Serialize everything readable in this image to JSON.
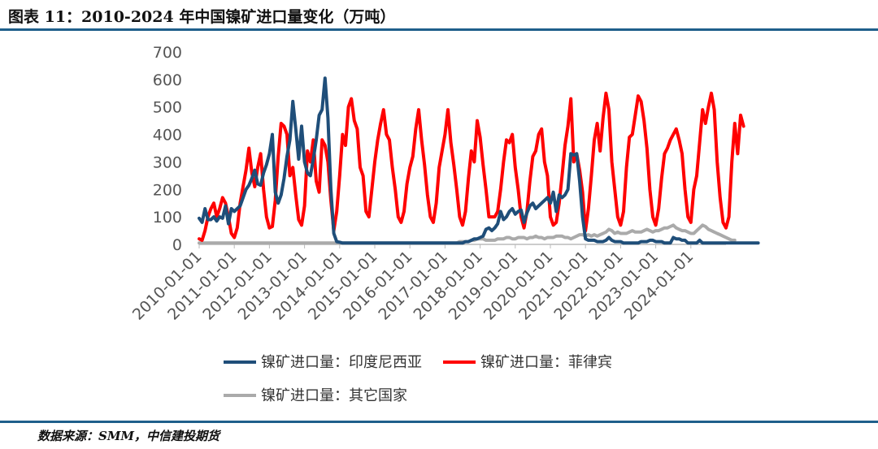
{
  "title": "图表 11：2010-2024 年中国镍矿进口量变化（万吨）",
  "source": "数据来源：SMM，中信建投期货",
  "chart_data": {
    "type": "line",
    "title": "2010-2024 年中国镍矿进口量变化（万吨）",
    "ylim": [
      0,
      700
    ],
    "yticks": [
      "0",
      "100",
      "200",
      "300",
      "400",
      "500",
      "600",
      "700"
    ],
    "xticks": [
      "2010-01-01",
      "2011-01-01",
      "2012-01-01",
      "2013-01-01",
      "2014-01-01",
      "2015-01-01",
      "2016-01-01",
      "2017-01-01",
      "2018-01-01",
      "2019-01-01",
      "2020-01-01",
      "2021-01-01",
      "2022-01-01",
      "2023-01-01",
      "2024-01-01"
    ],
    "x_start": "2010-01",
    "grid": false,
    "legend_position": "bottom",
    "series": [
      {
        "name": "镍矿进口量：印度尼西亚",
        "color": "#1f4e79",
        "values": [
          95,
          80,
          130,
          90,
          90,
          100,
          85,
          100,
          95,
          140,
          75,
          130,
          120,
          130,
          140,
          170,
          200,
          215,
          240,
          270,
          220,
          215,
          260,
          290,
          330,
          400,
          190,
          150,
          180,
          240,
          320,
          380,
          520,
          420,
          310,
          430,
          300,
          260,
          250,
          310,
          380,
          470,
          490,
          605,
          460,
          200,
          40,
          10,
          8,
          5,
          5,
          5,
          5,
          5,
          5,
          5,
          5,
          5,
          5,
          5,
          5,
          5,
          5,
          5,
          5,
          5,
          5,
          5,
          5,
          5,
          5,
          5,
          5,
          5,
          5,
          5,
          5,
          5,
          5,
          5,
          5,
          5,
          5,
          5,
          5,
          5,
          5,
          5,
          5,
          5,
          5,
          10,
          10,
          15,
          20,
          20,
          25,
          30,
          55,
          60,
          50,
          60,
          75,
          120,
          90,
          100,
          120,
          130,
          110,
          120,
          125,
          80,
          115,
          140,
          150,
          130,
          140,
          150,
          160,
          170,
          150,
          190,
          120,
          180,
          170,
          180,
          200,
          330,
          325,
          330,
          230,
          100,
          20,
          15,
          15,
          15,
          10,
          10,
          10,
          15,
          25,
          15,
          10,
          10,
          10,
          5,
          5,
          5,
          5,
          5,
          5,
          10,
          10,
          10,
          15,
          15,
          10,
          10,
          10,
          5,
          5,
          5,
          25,
          20,
          20,
          15,
          15,
          5,
          5,
          5,
          5,
          15,
          5,
          5,
          5,
          5,
          5,
          5,
          5,
          5,
          5,
          5,
          5,
          5,
          5,
          5,
          5,
          5,
          5,
          5,
          5,
          5
        ]
      },
      {
        "name": "镍矿进口量：菲律宾",
        "color": "#ff0000",
        "values": [
          20,
          15,
          50,
          100,
          130,
          150,
          100,
          130,
          170,
          150,
          100,
          40,
          25,
          60,
          150,
          210,
          270,
          350,
          260,
          210,
          280,
          330,
          200,
          100,
          60,
          65,
          160,
          320,
          440,
          430,
          400,
          250,
          280,
          180,
          90,
          70,
          140,
          340,
          300,
          380,
          230,
          190,
          380,
          360,
          300,
          160,
          50,
          120,
          250,
          400,
          360,
          500,
          530,
          450,
          420,
          280,
          250,
          120,
          100,
          200,
          300,
          380,
          440,
          490,
          400,
          380,
          280,
          200,
          100,
          80,
          120,
          220,
          280,
          320,
          420,
          490,
          380,
          290,
          180,
          100,
          80,
          150,
          280,
          340,
          400,
          490,
          370,
          290,
          200,
          100,
          70,
          120,
          240,
          340,
          300,
          450,
          390,
          290,
          200,
          100,
          100,
          100,
          120,
          200,
          300,
          380,
          370,
          400,
          280,
          200,
          100,
          60,
          120,
          230,
          320,
          340,
          400,
          420,
          300,
          250,
          100,
          70,
          80,
          150,
          250,
          360,
          430,
          530,
          300,
          330,
          270,
          190,
          50,
          130,
          250,
          380,
          440,
          340,
          460,
          550,
          490,
          300,
          200,
          100,
          70,
          120,
          280,
          390,
          400,
          470,
          540,
          520,
          450,
          350,
          200,
          100,
          70,
          130,
          240,
          330,
          350,
          380,
          400,
          420,
          380,
          330,
          200,
          100,
          80,
          200,
          250,
          370,
          490,
          440,
          500,
          550,
          490,
          300,
          170,
          80,
          60,
          100,
          300,
          440,
          330,
          470,
          430
        ]
      },
      {
        "name": "镍矿进口量：其它国家",
        "color": "#aaaaaa",
        "values": [
          5,
          5,
          5,
          5,
          5,
          5,
          5,
          5,
          5,
          5,
          5,
          5,
          5,
          5,
          5,
          5,
          5,
          5,
          5,
          5,
          5,
          5,
          5,
          5,
          5,
          5,
          5,
          5,
          5,
          5,
          5,
          5,
          5,
          5,
          5,
          5,
          5,
          5,
          5,
          5,
          5,
          5,
          5,
          5,
          5,
          5,
          5,
          5,
          5,
          5,
          5,
          5,
          5,
          5,
          5,
          5,
          5,
          5,
          5,
          5,
          5,
          5,
          5,
          5,
          5,
          5,
          5,
          5,
          5,
          5,
          5,
          5,
          5,
          5,
          5,
          5,
          5,
          5,
          5,
          5,
          5,
          5,
          5,
          5,
          5,
          5,
          5,
          5,
          5,
          10,
          10,
          10,
          10,
          15,
          15,
          20,
          20,
          20,
          15,
          15,
          15,
          15,
          20,
          20,
          20,
          25,
          25,
          20,
          20,
          25,
          25,
          25,
          20,
          25,
          25,
          30,
          25,
          25,
          20,
          25,
          25,
          25,
          30,
          30,
          30,
          25,
          25,
          20,
          25,
          30,
          35,
          35,
          30,
          35,
          30,
          35,
          30,
          35,
          40,
          45,
          55,
          50,
          40,
          45,
          40,
          40,
          40,
          45,
          50,
          45,
          45,
          45,
          50,
          55,
          50,
          45,
          50,
          50,
          55,
          60,
          60,
          65,
          70,
          60,
          55,
          50,
          50,
          45,
          40,
          40,
          50,
          60,
          70,
          65,
          55,
          50,
          45,
          40,
          35,
          30,
          25,
          20,
          15,
          15
        ]
      }
    ]
  }
}
